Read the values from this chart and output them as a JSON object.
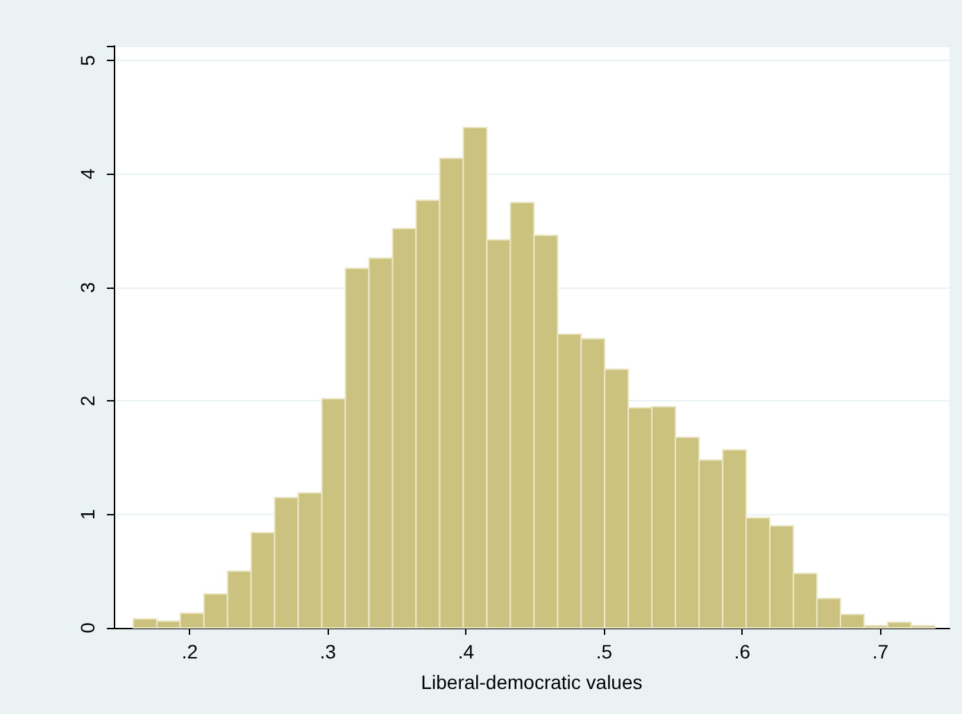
{
  "chart_data": {
    "type": "histogram",
    "xlabel": "Liberal-democratic values",
    "color": "#cbc27f",
    "bins": [
      0.159,
      0.1761,
      0.1931,
      0.2102,
      0.2273,
      0.2444,
      0.2614,
      0.2785,
      0.2956,
      0.3126,
      0.3297,
      0.3468,
      0.3638,
      0.3809,
      0.398,
      0.4151,
      0.4321,
      0.4492,
      0.4663,
      0.4833,
      0.5004,
      0.5175,
      0.5345,
      0.5516,
      0.5687,
      0.5858,
      0.6028,
      0.6199,
      0.637,
      0.654,
      0.6711,
      0.6882,
      0.7052,
      0.7223,
      0.7394
    ],
    "values": [
      0.08,
      0.06,
      0.13,
      0.3,
      0.5,
      0.84,
      1.15,
      1.19,
      2.02,
      3.17,
      3.26,
      3.52,
      3.77,
      4.14,
      4.41,
      3.42,
      3.75,
      3.46,
      2.59,
      2.55,
      2.28,
      1.94,
      1.95,
      1.68,
      1.48,
      1.57,
      0.97,
      0.9,
      0.48,
      0.26,
      0.12,
      0.02,
      0.05,
      0.02
    ],
    "xlim": [
      0.145,
      0.75
    ],
    "ylim": [
      0,
      5.13
    ],
    "xticks": [
      {
        "value": 0.2,
        "label": ".2"
      },
      {
        "value": 0.3,
        "label": ".3"
      },
      {
        "value": 0.4,
        "label": ".4"
      },
      {
        "value": 0.5,
        "label": ".5"
      },
      {
        "value": 0.6,
        "label": ".6"
      },
      {
        "value": 0.7,
        "label": ".7"
      }
    ],
    "yticks": [
      0,
      1,
      2,
      3,
      4,
      5
    ],
    "grid": "y"
  }
}
